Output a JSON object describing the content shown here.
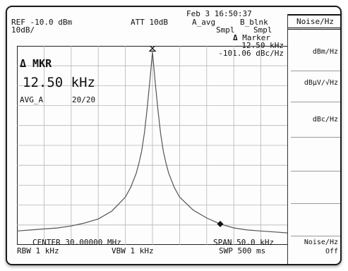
{
  "header": {
    "date": "Feb  3 16:50:37",
    "ref_level": "REF -10.0 dBm",
    "attenuation": "ATT 10dB",
    "trace_a": "A_avg",
    "trace_b": "B_blnk",
    "scale": "10dB/",
    "mode_a": "Smpl",
    "mode_b": "Smpl"
  },
  "marker_readout": {
    "title": "Marker",
    "delta_symbol": "Δ",
    "frequency": "12.50 kHz",
    "level": "-101.06 dBc/Hz"
  },
  "marker_panel": {
    "label": "Δ MKR",
    "value": "12.50 kHz",
    "avg_label": "AVG_A",
    "avg_count": "20/20"
  },
  "footer": {
    "center": "CENTER 30.00000 MHz",
    "span": "SPAN 50.0 kHz",
    "rbw": "RBW 1 kHz",
    "vbw": "VBW 1 kHz",
    "sweep": "SWP 500 ms"
  },
  "softkeys": {
    "title": "Noise/Hz",
    "items": [
      "dBm/Hz",
      "dBμV/√Hz",
      "dBc/Hz"
    ],
    "bottom_line1": "Noise/Hz",
    "bottom_line2": "Off"
  },
  "chart_data": {
    "type": "line",
    "x_unit": "kHz offset from center",
    "xlim": [
      -25,
      25
    ],
    "ylim": [
      -110,
      -10
    ],
    "y_unit": "dBm",
    "grid": true,
    "grid_divisions": [
      10,
      10
    ],
    "series": [
      {
        "x": [
          -25,
          -22.5,
          -20,
          -17.5,
          -15,
          -12.5,
          -10,
          -7.5,
          -5,
          -4,
          -3,
          -2.5,
          -2,
          -1.5,
          -1,
          -0.5,
          0,
          0.5,
          1,
          1.5,
          2,
          2.5,
          3,
          4,
          5,
          7.5,
          10,
          12.5,
          15,
          17.5,
          20,
          22.5,
          25
        ],
        "y": [
          -103,
          -102.5,
          -102,
          -101.5,
          -100.5,
          -99,
          -97,
          -93,
          -86,
          -81,
          -74,
          -69,
          -63,
          -54,
          -42,
          -28,
          -13,
          -28,
          -42,
          -54,
          -63,
          -69,
          -74,
          -81,
          -86,
          -92.5,
          -96.5,
          -99.5,
          -101.5,
          -102.5,
          -103,
          -103.5,
          -104
        ]
      }
    ],
    "marker": {
      "x": 12.5,
      "y": -99.5
    },
    "reference_marker": {
      "x": 0,
      "y": -13
    }
  }
}
